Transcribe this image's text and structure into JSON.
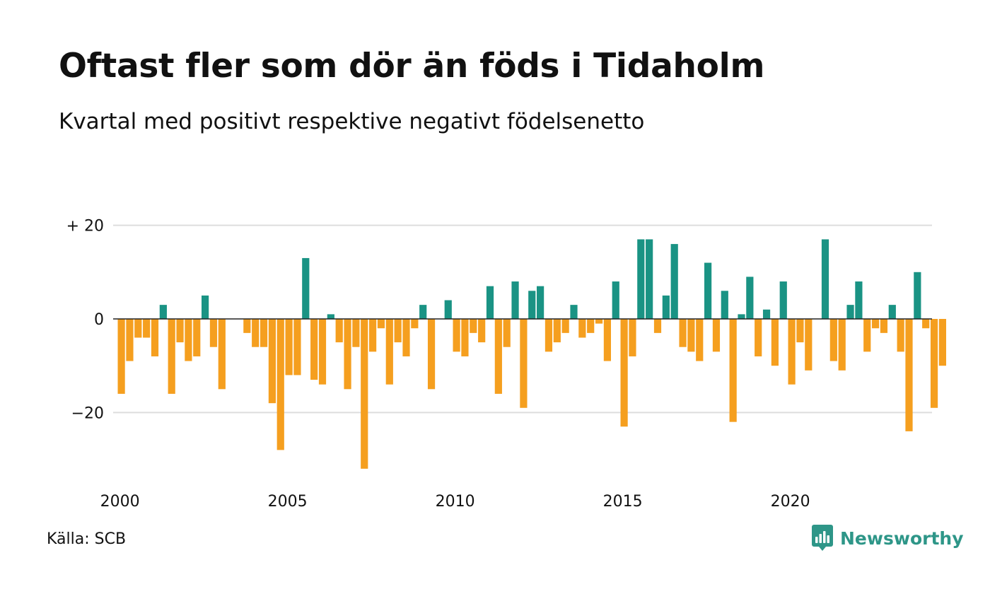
{
  "header": {
    "title": "Oftast fler som dör än föds i Tidaholm",
    "subtitle": "Kvartal med positivt respektive negativt födelsenetto"
  },
  "footer": {
    "source": "Källa: SCB",
    "brand": "Newsworthy"
  },
  "colors": {
    "positive": "#1a9384",
    "negative": "#f59f1f",
    "gridline": "#dddddd",
    "zero_line": "#222222",
    "text": "#111111",
    "brand": "#2e9688"
  },
  "chart_data": {
    "type": "bar",
    "title": "Oftast fler som dör än föds i Tidaholm",
    "subtitle": "Kvartal med positivt respektive negativt födelsenetto",
    "xlabel": "",
    "ylabel": "",
    "x_ticks": [
      "2000",
      "2005",
      "2010",
      "2015",
      "2020"
    ],
    "y_ticks": [
      {
        "value": 20,
        "label": "+ 20"
      },
      {
        "value": 0,
        "label": "0"
      },
      {
        "value": -20,
        "label": "−20"
      }
    ],
    "ylim": [
      -35,
      20
    ],
    "grid": true,
    "start_year": 2000,
    "periods_per_year": 4,
    "values": [
      -16,
      -9,
      -4,
      -4,
      -8,
      3,
      -16,
      -5,
      -9,
      -8,
      5,
      -6,
      -15,
      0,
      0,
      -3,
      -6,
      -6,
      -18,
      -28,
      -12,
      -12,
      13,
      -13,
      -14,
      1,
      -5,
      -15,
      -6,
      -32,
      -7,
      -2,
      -14,
      -5,
      -8,
      -2,
      3,
      -15,
      0,
      4,
      -7,
      -8,
      -3,
      -5,
      7,
      -16,
      -6,
      8,
      -19,
      6,
      7,
      -7,
      -5,
      -3,
      3,
      -4,
      -3,
      -1,
      -9,
      8,
      -23,
      -8,
      17,
      17,
      -3,
      5,
      16,
      -6,
      -7,
      -9,
      12,
      -7,
      6,
      -22,
      1,
      9,
      -8,
      2,
      -10,
      8,
      -14,
      -5,
      -11,
      0,
      17,
      -9,
      -11,
      3,
      8,
      -7,
      -2,
      -3,
      3,
      -7,
      -24,
      10,
      -2,
      -19,
      -10
    ]
  }
}
